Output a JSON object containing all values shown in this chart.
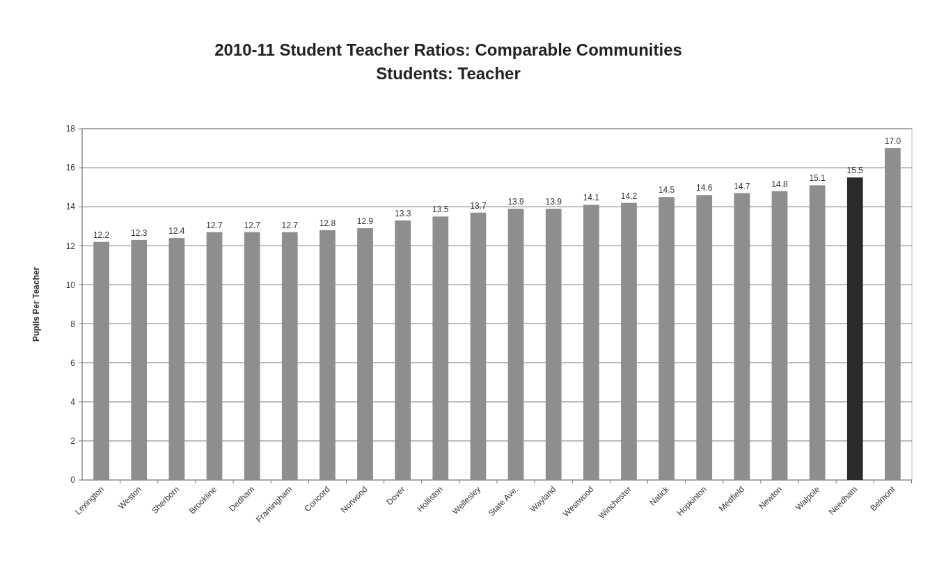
{
  "chart_data": {
    "type": "bar",
    "title": "2010-11 Student Teacher Ratios:  Comparable Communities",
    "subtitle": "Students:  Teacher",
    "ylabel": "Pupils Per Teacher",
    "categories": [
      "Lexington",
      "Weston",
      "Sherborn",
      "Brookline",
      "Dedham",
      "Framingham",
      "Concord",
      "Norwood",
      "Dover",
      "Holliston",
      "Wellesley",
      "State Ave.",
      "Wayland",
      "Westwood",
      "Winchester",
      "Natick",
      "Hopkinton",
      "Medfield",
      "Newton",
      "Walpole",
      "Needham",
      "Belmont"
    ],
    "values": [
      12.2,
      12.3,
      12.4,
      12.7,
      12.7,
      12.7,
      12.8,
      12.9,
      13.3,
      13.5,
      13.7,
      13.9,
      13.9,
      14.1,
      14.2,
      14.5,
      14.6,
      14.7,
      14.8,
      15.1,
      15.5,
      17.0
    ],
    "value_labels": [
      "12.2",
      "12.3",
      "12.4",
      "12.7",
      "12.7",
      "12.7",
      "12.8",
      "12.9",
      "13.3",
      "13.5",
      "13.7",
      "13.9",
      "13.9",
      "14.1",
      "14.2",
      "14.5",
      "14.6",
      "14.7",
      "14.8",
      "15.1",
      "15.5",
      "17.0"
    ],
    "colors": [
      "#8e8e8e",
      "#8e8e8e",
      "#8e8e8e",
      "#8e8e8e",
      "#8e8e8e",
      "#8e8e8e",
      "#8e8e8e",
      "#8e8e8e",
      "#8e8e8e",
      "#8e8e8e",
      "#8e8e8e",
      "#8e8e8e",
      "#8e8e8e",
      "#8e8e8e",
      "#8e8e8e",
      "#8e8e8e",
      "#8e8e8e",
      "#8e8e8e",
      "#8e8e8e",
      "#8e8e8e",
      "#2b2b2b",
      "#8e8e8e"
    ],
    "ylim": [
      0,
      18
    ],
    "yticks": [
      0,
      2,
      4,
      6,
      8,
      10,
      12,
      14,
      16,
      18
    ],
    "grid": "y"
  }
}
